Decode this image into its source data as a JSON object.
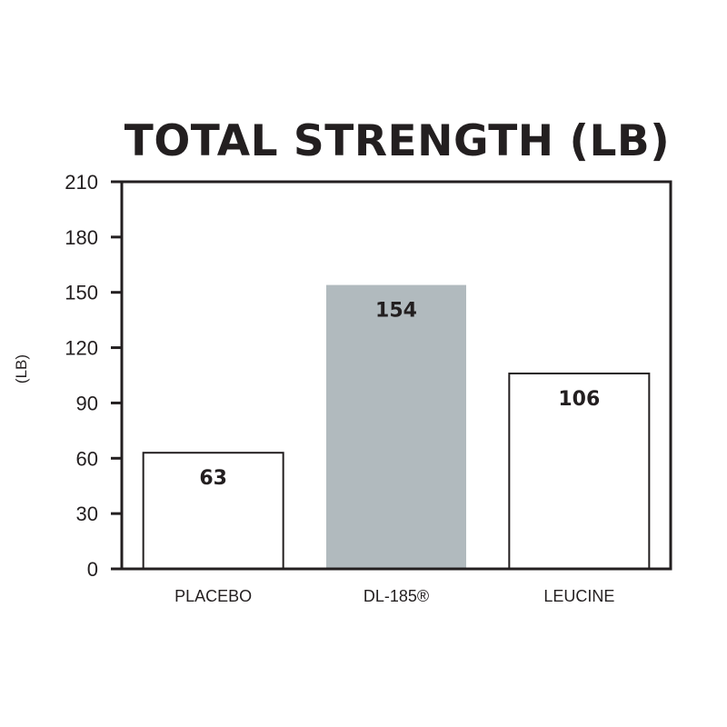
{
  "chart_data": {
    "type": "bar",
    "title": "TOTAL STRENGTH (LB)",
    "ylabel": "(LB)",
    "xlabel": "",
    "categories": [
      "PLACEBO",
      "DL-185®",
      "LEUCINE"
    ],
    "values": [
      63,
      154,
      106
    ],
    "value_labels": [
      "63",
      "154",
      "106"
    ],
    "ylim": [
      0,
      210
    ],
    "yticks": [
      0,
      30,
      60,
      90,
      120,
      150,
      180,
      210
    ],
    "bar_fill_colors": [
      "#ffffff",
      "#b1babe",
      "#ffffff"
    ],
    "bar_outline_colors": [
      "#231f20",
      "none",
      "#231f20"
    ],
    "axis_color": "#231f20",
    "grid": false,
    "legend": "none"
  }
}
